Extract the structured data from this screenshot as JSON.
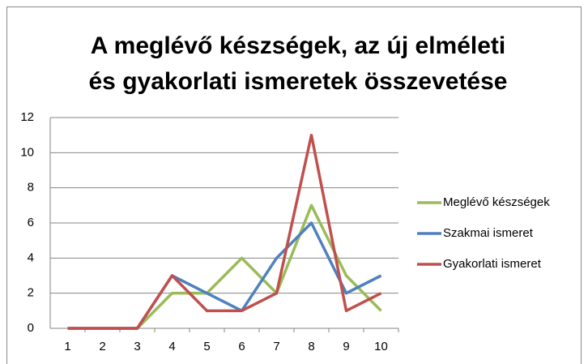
{
  "chart_data": {
    "type": "line",
    "title": [
      "A meglévő készségek, az új elméleti",
      "és gyakorlati ismeretek összevetése"
    ],
    "categories": [
      "1",
      "2",
      "3",
      "4",
      "5",
      "6",
      "7",
      "8",
      "9",
      "10"
    ],
    "series": [
      {
        "name": "Meglévő készségek",
        "color": "#9bbb59",
        "values": [
          0,
          0,
          0,
          2,
          2,
          4,
          2,
          7,
          3,
          1
        ]
      },
      {
        "name": "Szakmai ismeret",
        "color": "#4f81bd",
        "values": [
          0,
          0,
          0,
          3,
          2,
          1,
          4,
          6,
          2,
          3
        ]
      },
      {
        "name": "Gyakorlati ismeret",
        "color": "#c0504d",
        "values": [
          0,
          0,
          0,
          3,
          1,
          1,
          2,
          11,
          1,
          2
        ]
      }
    ],
    "ylim": [
      0,
      12
    ],
    "yticks": [
      0,
      2,
      4,
      6,
      8,
      10,
      12
    ],
    "grid": true,
    "legend": "right"
  }
}
